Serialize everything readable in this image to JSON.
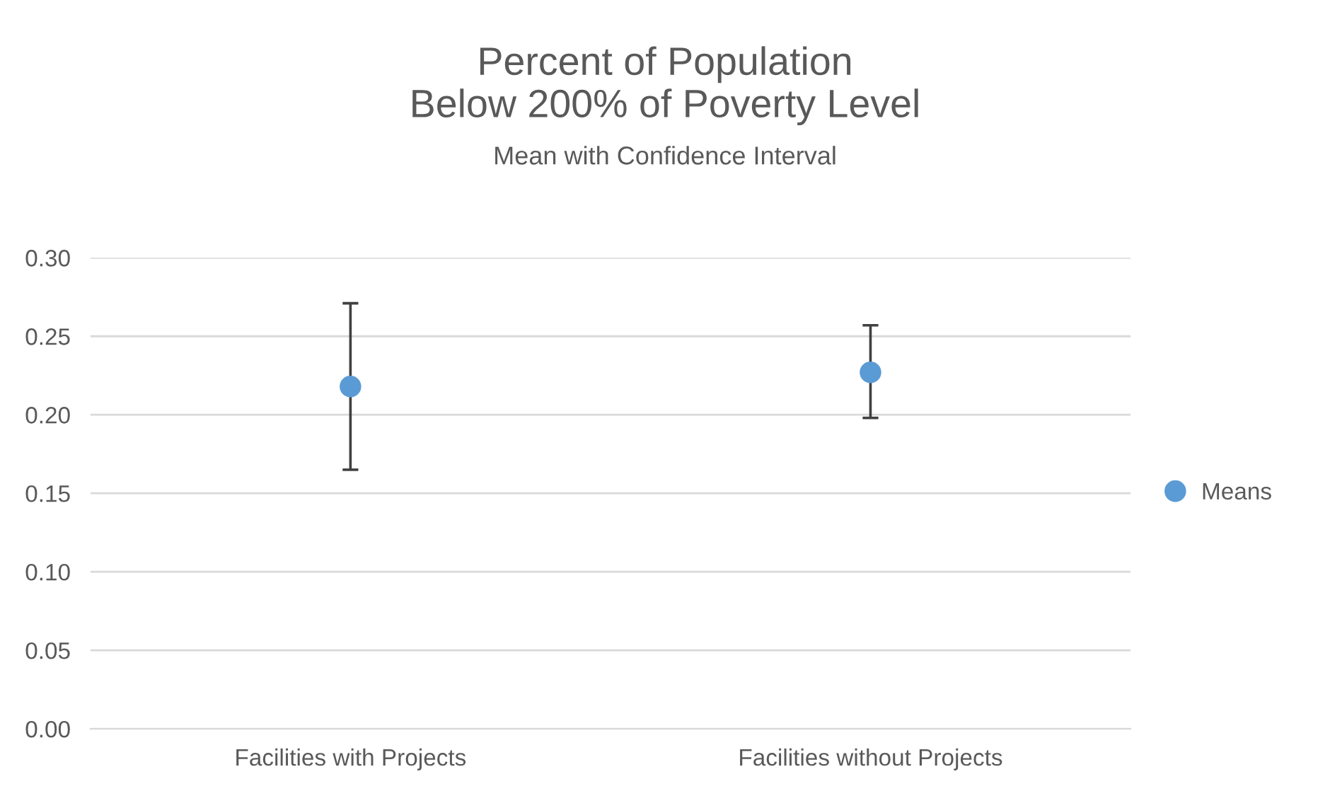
{
  "chart_data": {
    "type": "scatter",
    "title": "Percent of Population\nBelow 200% of Poverty Level",
    "subtitle": "Mean with Confidence Interval",
    "categories": [
      "Facilities with Projects",
      "Facilities without Projects"
    ],
    "series": [
      {
        "name": "Means",
        "color": "#5b9bd5",
        "values": [
          0.218,
          0.227
        ],
        "errors": [
          [
            0.165,
            0.271
          ],
          [
            0.198,
            0.257
          ]
        ]
      }
    ],
    "ylim": [
      0,
      0.3
    ],
    "yticks": [
      {
        "value": 0,
        "label": "0.00"
      },
      {
        "value": 0.05,
        "label": "0.05"
      },
      {
        "value": 0.1,
        "label": "0.10"
      },
      {
        "value": 0.15,
        "label": "0.15"
      },
      {
        "value": 0.2,
        "label": "0.20"
      },
      {
        "value": 0.25,
        "label": "0.25"
      },
      {
        "value": 0.3,
        "label": "0.30"
      }
    ],
    "grid": "y",
    "legend": "right",
    "marker": "circle"
  }
}
